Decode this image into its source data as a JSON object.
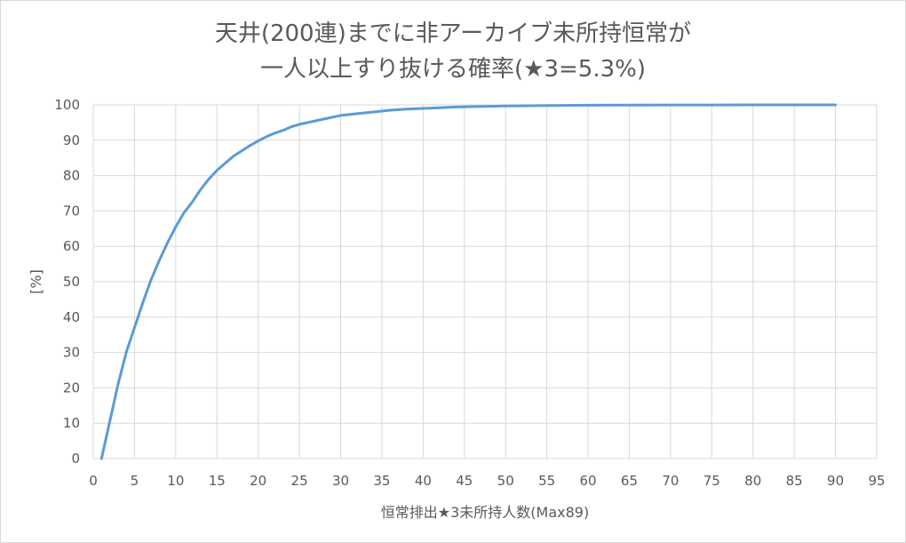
{
  "chart_data": {
    "type": "line",
    "title_line1": "天井(200連)までに非アーカイブ未所持恒常が",
    "title_line2": "一人以上すり抜ける確率(★3=5.3%)",
    "xlabel": "恒常排出★3未所持人数(Max89)",
    "ylabel": "[%]",
    "xlim": [
      0,
      95
    ],
    "ylim": [
      0,
      100
    ],
    "x_ticks": [
      0,
      5,
      10,
      15,
      20,
      25,
      30,
      35,
      40,
      45,
      50,
      55,
      60,
      65,
      70,
      75,
      80,
      85,
      90,
      95
    ],
    "y_ticks": [
      0,
      10,
      20,
      30,
      40,
      50,
      60,
      70,
      80,
      90,
      100
    ],
    "grid": true,
    "legend": "none",
    "line_color": "#5b9bd5",
    "series": [
      {
        "x": [
          1,
          2,
          3,
          4,
          5,
          6,
          7,
          8,
          9,
          10,
          11,
          12,
          13,
          14,
          15,
          16,
          17,
          18,
          19,
          20,
          21,
          22,
          23,
          24,
          25,
          26,
          27,
          28,
          29,
          30,
          32,
          34,
          36,
          38,
          40,
          42,
          44,
          46,
          48,
          50,
          55,
          60,
          65,
          70,
          75,
          80,
          85,
          90
        ],
        "values": [
          0,
          10.5,
          21,
          30,
          37,
          44,
          50.5,
          56,
          61,
          65.5,
          69.5,
          72.5,
          76,
          79,
          81.5,
          83.5,
          85.5,
          87,
          88.5,
          89.8,
          91,
          92,
          92.8,
          93.8,
          94.5,
          95,
          95.5,
          96,
          96.5,
          97,
          97.5,
          98,
          98.5,
          98.8,
          99,
          99.2,
          99.4,
          99.5,
          99.6,
          99.7,
          99.8,
          99.9,
          99.95,
          99.97,
          99.98,
          99.99,
          100,
          100
        ]
      }
    ]
  }
}
